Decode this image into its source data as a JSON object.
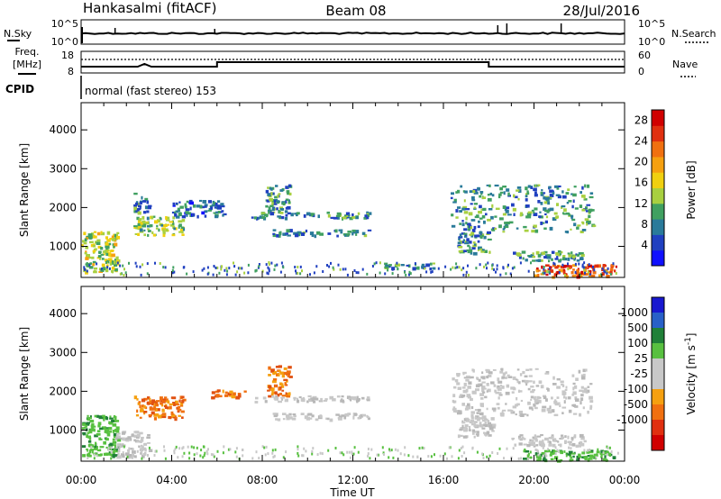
{
  "header": {
    "station": "Hankasalmi (fitACF)",
    "beam": "Beam 08",
    "date": "28/Jul/2016"
  },
  "noise_panel": {
    "left_label": "N.Sky",
    "right_label": "N.Search",
    "left_ticks": [
      "10^5",
      "10^0"
    ],
    "right_ticks": [
      "10^5",
      "10^0"
    ]
  },
  "freq_panel": {
    "left_label_1": "Freq.",
    "left_label_2": "[MHz]",
    "right_label": "Nave",
    "left_ticks": [
      "18",
      "8"
    ],
    "right_ticks": [
      "60",
      "0"
    ]
  },
  "cpid": {
    "label": "CPID",
    "text": "normal (fast stereo) 153"
  },
  "chart_data": [
    {
      "type": "heatmap",
      "name": "Power",
      "ylabel": "Slant Range [km]",
      "xlabel": "Time UT",
      "x_range_hours": [
        0,
        24
      ],
      "ylim": [
        200,
        4700
      ],
      "yticks": [
        "1000",
        "2000",
        "3000",
        "4000"
      ],
      "colorbar": {
        "label": "Power [dB]",
        "ticks": [
          "4",
          "8",
          "12",
          "16",
          "20",
          "24",
          "28"
        ],
        "range": [
          0,
          30
        ],
        "colors": [
          "#1010ff",
          "#2040c0",
          "#2a7a9a",
          "#40a060",
          "#a8d040",
          "#f0d010",
          "#f5a010",
          "#f07010",
          "#e03010",
          "#d00000"
        ]
      },
      "regions": [
        {
          "t0": 0.0,
          "t1": 1.6,
          "r0": 350,
          "r1": 1400,
          "level": 14
        },
        {
          "t0": 2.3,
          "t1": 4.5,
          "r0": 1300,
          "r1": 1800,
          "level": 13
        },
        {
          "t0": 2.3,
          "t1": 3.0,
          "r0": 1900,
          "r1": 2400,
          "level": 8
        },
        {
          "t0": 4.0,
          "t1": 6.3,
          "r0": 1800,
          "r1": 2200,
          "level": 7
        },
        {
          "t0": 8.1,
          "t1": 9.2,
          "r0": 1800,
          "r1": 2600,
          "level": 9
        },
        {
          "t0": 8.4,
          "t1": 12.7,
          "r0": 1300,
          "r1": 1450,
          "level": 8
        },
        {
          "t0": 7.5,
          "t1": 12.7,
          "r0": 1750,
          "r1": 1900,
          "level": 8
        },
        {
          "t0": 13.2,
          "t1": 15.6,
          "r0": 450,
          "r1": 600,
          "level": 9
        },
        {
          "t0": 16.3,
          "t1": 22.6,
          "r0": 1400,
          "r1": 2600,
          "level": 9
        },
        {
          "t0": 16.6,
          "t1": 18.0,
          "r0": 850,
          "r1": 1400,
          "level": 9
        },
        {
          "t0": 19.0,
          "t1": 22.2,
          "r0": 650,
          "r1": 900,
          "level": 10
        },
        {
          "t0": 20.0,
          "t1": 23.6,
          "r0": 230,
          "r1": 550,
          "level": 24
        }
      ]
    },
    {
      "type": "heatmap",
      "name": "Velocity",
      "ylabel": "Slant Range [km]",
      "xlabel": "Time UT",
      "x_range_hours": [
        0,
        24
      ],
      "ylim": [
        200,
        4700
      ],
      "yticks": [
        "1000",
        "2000",
        "3000",
        "4000"
      ],
      "xticks": [
        "00:00",
        "04:00",
        "08:00",
        "12:00",
        "16:00",
        "20:00",
        "00:00"
      ],
      "colorbar": {
        "label": "Velocity [m s^-1]",
        "ticks": [
          "1000",
          "500",
          "100",
          "25",
          "-25",
          "-100",
          "-500",
          "-1000"
        ],
        "colors": [
          "#1818d0",
          "#2860c8",
          "#208038",
          "#58c040",
          "#c8c8c8",
          "#c8c8c8",
          "#f5a010",
          "#f07010",
          "#e03010",
          "#d00000"
        ]
      },
      "regions": [
        {
          "t0": 0.0,
          "t1": 1.6,
          "r0": 350,
          "r1": 1400,
          "class": "green"
        },
        {
          "t0": 1.5,
          "t1": 3.0,
          "r0": 300,
          "r1": 1000,
          "class": "grey"
        },
        {
          "t0": 2.3,
          "t1": 4.5,
          "r0": 1300,
          "r1": 1900,
          "class": "orange"
        },
        {
          "t0": 5.7,
          "t1": 7.2,
          "r0": 1850,
          "r1": 2050,
          "class": "orange"
        },
        {
          "t0": 8.2,
          "t1": 9.2,
          "r0": 1900,
          "r1": 2700,
          "class": "orange"
        },
        {
          "t0": 7.6,
          "t1": 12.7,
          "r0": 1750,
          "r1": 1900,
          "class": "grey"
        },
        {
          "t0": 8.4,
          "t1": 12.7,
          "r0": 1300,
          "r1": 1450,
          "class": "grey"
        },
        {
          "t0": 16.3,
          "t1": 22.6,
          "r0": 1400,
          "r1": 2600,
          "class": "grey"
        },
        {
          "t0": 16.6,
          "t1": 18.2,
          "r0": 850,
          "r1": 1400,
          "class": "grey"
        },
        {
          "t0": 19.5,
          "t1": 23.5,
          "r0": 230,
          "r1": 500,
          "class": "green"
        },
        {
          "t0": 19.0,
          "t1": 22.2,
          "r0": 600,
          "r1": 900,
          "class": "grey"
        }
      ]
    }
  ]
}
